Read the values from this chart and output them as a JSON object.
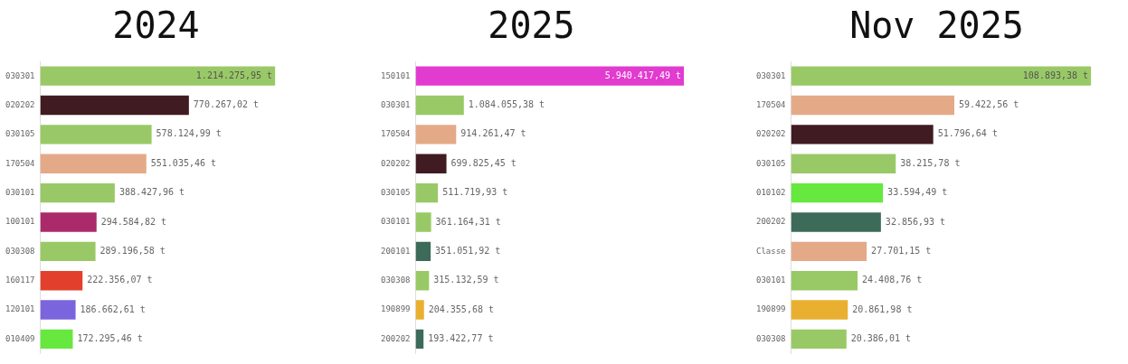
{
  "chart_data": [
    {
      "type": "bar",
      "orientation": "horizontal",
      "title": "2024",
      "legend": false,
      "grid": false,
      "tick_labels": "y",
      "categories": [
        "030301",
        "020202",
        "030105",
        "170504",
        "030101",
        "100101",
        "030308",
        "160117",
        "120101",
        "010409"
      ],
      "values": [
        1214275.95,
        770267.02,
        578124.99,
        551035.46,
        388427.96,
        294584.82,
        289196.58,
        222356.07,
        186662.61,
        172295.46
      ],
      "colors": [
        "#99c966",
        "#411b22",
        "#99c966",
        "#e4aa88",
        "#99c966",
        "#ab2a6a",
        "#99c966",
        "#e2402c",
        "#7b65dc",
        "#66e83e"
      ],
      "value_labels": [
        "1.214.275,95 t",
        "770.267,02 t",
        "578.124,99 t",
        "551.035,46 t",
        "388.427,96 t",
        "294.584,82 t",
        "289.196,58 t",
        "222.356,07 t",
        "186.662,61 t",
        "172.295,46 t"
      ]
    },
    {
      "type": "bar",
      "orientation": "horizontal",
      "title": "2025",
      "legend": false,
      "grid": false,
      "tick_labels": "y",
      "categories": [
        "150101",
        "030301",
        "170504",
        "020202",
        "030105",
        "030101",
        "200101",
        "030308",
        "190899",
        "200202"
      ],
      "values": [
        5940417.49,
        1084055.38,
        914261.47,
        699825.45,
        511719.93,
        361164.31,
        351051.92,
        315132.59,
        204355.68,
        193422.77
      ],
      "colors": [
        "#e23bcf",
        "#99c966",
        "#e4aa88",
        "#411b22",
        "#99c966",
        "#99c966",
        "#3d6b59",
        "#99c966",
        "#e9b030",
        "#3d6b59"
      ],
      "value_labels": [
        "5.940.417,49 t",
        "1.084.055,38 t",
        "914.261,47 t",
        "699.825,45 t",
        "511.719,93 t",
        "361.164,31 t",
        "351.051,92 t",
        "315.132,59 t",
        "204.355,68 t",
        "193.422,77 t"
      ]
    },
    {
      "type": "bar",
      "orientation": "horizontal",
      "title": "Nov 2025",
      "legend": false,
      "grid": false,
      "tick_labels": "y",
      "categories": [
        "030301",
        "170504",
        "020202",
        "030105",
        "010102",
        "200202",
        "Classe",
        "030101",
        "190899",
        "030308"
      ],
      "values": [
        108893.38,
        59422.56,
        51796.64,
        38215.78,
        33594.49,
        32856.93,
        27701.15,
        24408.76,
        20861.98,
        20386.01
      ],
      "colors": [
        "#99c966",
        "#e4aa88",
        "#411b22",
        "#99c966",
        "#66e83e",
        "#3d6b59",
        "#e4aa88",
        "#99c966",
        "#e9b030",
        "#99c966"
      ],
      "value_labels": [
        "108.893,38 t",
        "59.422,56 t",
        "51.796,64 t",
        "38.215,78 t",
        "33.594,49 t",
        "32.856,93 t",
        "27.701,15 t",
        "24.408,76 t",
        "20.861,98 t",
        "20.386,01 t"
      ]
    }
  ]
}
